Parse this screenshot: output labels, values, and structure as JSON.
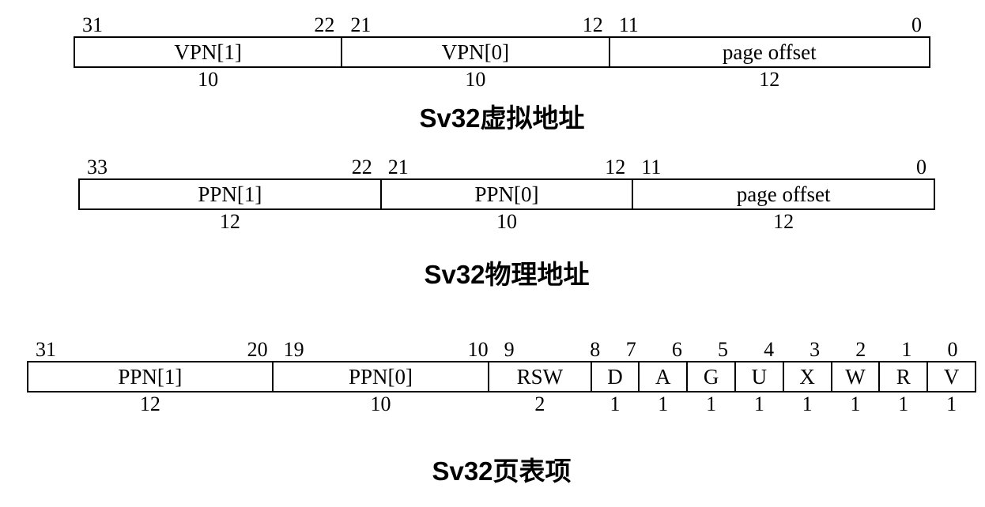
{
  "page": {
    "background": "#ffffff",
    "line_color": "#000000",
    "text_color": "#000000"
  },
  "diagrams": [
    {
      "id": "sv32-va",
      "caption": "Sv32虚拟地址",
      "total_bits": 32,
      "fields": [
        {
          "label": "VPN[1]",
          "hi": "31",
          "lo": "22",
          "bits": "10",
          "rel": 10
        },
        {
          "label": "VPN[0]",
          "hi": "21",
          "lo": "12",
          "bits": "10",
          "rel": 10
        },
        {
          "label": "page offset",
          "hi": "11",
          "lo": "0",
          "bits": "12",
          "rel": 12
        }
      ]
    },
    {
      "id": "sv32-pa",
      "caption": "Sv32物理地址",
      "total_bits": 34,
      "fields": [
        {
          "label": "PPN[1]",
          "hi": "33",
          "lo": "22",
          "bits": "12",
          "rel": 12
        },
        {
          "label": "PPN[0]",
          "hi": "21",
          "lo": "12",
          "bits": "10",
          "rel": 10
        },
        {
          "label": "page offset",
          "hi": "11",
          "lo": "0",
          "bits": "12",
          "rel": 12
        }
      ]
    },
    {
      "id": "sv32-pte",
      "caption": "Sv32页表项",
      "total_bits": 32,
      "fields": [
        {
          "label": "PPN[1]",
          "hi": "31",
          "lo": "20",
          "bits": "12",
          "rel": 314
        },
        {
          "label": "PPN[0]",
          "hi": "19",
          "lo": "10",
          "bits": "10",
          "rel": 277
        },
        {
          "label": "RSW",
          "hi": "9",
          "lo": "8",
          "bits": "2",
          "rel": 130
        },
        {
          "label": "D",
          "hi": "7",
          "lo": "7",
          "bits": "1",
          "rel": 60
        },
        {
          "label": "A",
          "hi": "6",
          "lo": "6",
          "bits": "1",
          "rel": 60
        },
        {
          "label": "G",
          "hi": "5",
          "lo": "5",
          "bits": "1",
          "rel": 60
        },
        {
          "label": "U",
          "hi": "4",
          "lo": "4",
          "bits": "1",
          "rel": 60
        },
        {
          "label": "X",
          "hi": "3",
          "lo": "3",
          "bits": "1",
          "rel": 60
        },
        {
          "label": "W",
          "hi": "2",
          "lo": "2",
          "bits": "1",
          "rel": 60
        },
        {
          "label": "R",
          "hi": "1",
          "lo": "1",
          "bits": "1",
          "rel": 60
        },
        {
          "label": "V",
          "hi": "0",
          "lo": "0",
          "bits": "1",
          "rel": 60
        }
      ]
    }
  ]
}
